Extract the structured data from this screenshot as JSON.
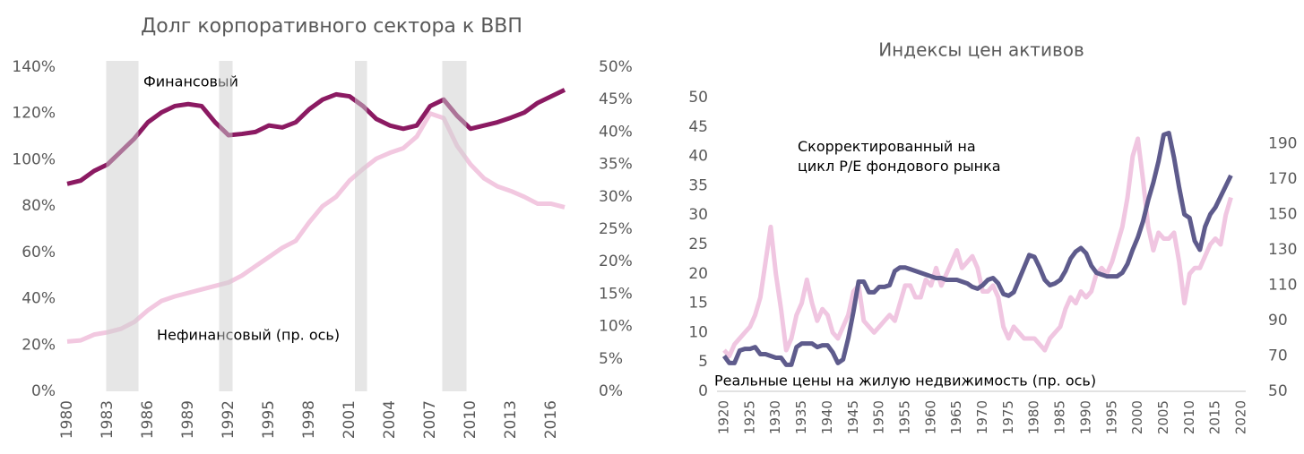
{
  "chart_data": [
    {
      "type": "line",
      "title": "Долг корпоративного сектора к ВВП",
      "x": [
        1980,
        1981,
        1982,
        1983,
        1984,
        1985,
        1986,
        1987,
        1988,
        1989,
        1990,
        1991,
        1992,
        1993,
        1994,
        1995,
        1996,
        1997,
        1998,
        1999,
        2000,
        2001,
        2002,
        2003,
        2004,
        2005,
        2006,
        2007,
        2008,
        2009,
        2010,
        2011,
        2012,
        2013,
        2014,
        2015,
        2016,
        2017
      ],
      "xlim": [
        1980,
        2018
      ],
      "xticks": [
        1980,
        1983,
        1986,
        1989,
        1992,
        1995,
        1998,
        2001,
        2004,
        2007,
        2010,
        2013,
        2016
      ],
      "ylim": [
        0,
        140
      ],
      "yticks": [
        {
          "value": 0,
          "label": "0%"
        },
        {
          "value": 20,
          "label": "20%"
        },
        {
          "value": 40,
          "label": "40%"
        },
        {
          "value": 60,
          "label": "60%"
        },
        {
          "value": 80,
          "label": "80%"
        },
        {
          "value": 100,
          "label": "100%"
        },
        {
          "value": 120,
          "label": "120%"
        },
        {
          "value": 140,
          "label": "140%"
        }
      ],
      "y2lim": [
        0,
        50
      ],
      "y2ticks": [
        {
          "value": 0,
          "label": "0%"
        },
        {
          "value": 5,
          "label": "5%"
        },
        {
          "value": 10,
          "label": "10%"
        },
        {
          "value": 15,
          "label": "15%"
        },
        {
          "value": 20,
          "label": "20%"
        },
        {
          "value": 25,
          "label": "25%"
        },
        {
          "value": 30,
          "label": "30%"
        },
        {
          "value": 35,
          "label": "35%"
        },
        {
          "value": 40,
          "label": "40%"
        },
        {
          "value": 45,
          "label": "45%"
        },
        {
          "value": 50,
          "label": "50%"
        }
      ],
      "shaded_periods": [
        [
          1982.9,
          1985.3
        ],
        [
          1991.3,
          1992.3
        ],
        [
          2001.4,
          2002.3
        ],
        [
          2007.9,
          2009.7
        ]
      ],
      "series": [
        {
          "name": "Финансовый",
          "color": "#f2c8e0",
          "values": [
            21.5,
            22,
            24.5,
            25.5,
            27,
            30,
            35,
            39,
            41,
            42.5,
            44,
            45.5,
            47,
            50,
            54,
            58,
            62,
            65,
            73,
            80,
            84,
            91,
            96,
            100.5,
            103,
            105,
            110,
            120,
            118,
            106,
            98,
            92,
            88.5,
            86.5,
            84,
            81,
            81,
            79.5
          ]
        },
        {
          "name": "Нефинансовый (пр. ось)",
          "color": "#8b1a62",
          "axis": "y2",
          "values": [
            32,
            32.5,
            34,
            35,
            37,
            39,
            41.5,
            43,
            44,
            44.3,
            44,
            41.5,
            39.5,
            39.7,
            40,
            41,
            40.7,
            41.5,
            43.5,
            45,
            45.8,
            45.5,
            44,
            42,
            41,
            40.5,
            41,
            44,
            45,
            42.5,
            40.5,
            41,
            41.5,
            42.2,
            43,
            44.5,
            45.5,
            46.5
          ]
        }
      ]
    },
    {
      "type": "line",
      "title": "Индексы цен активов",
      "x": [
        1920,
        1921,
        1922,
        1923,
        1924,
        1925,
        1926,
        1927,
        1928,
        1929,
        1930,
        1931,
        1932,
        1933,
        1934,
        1935,
        1936,
        1937,
        1938,
        1939,
        1940,
        1941,
        1942,
        1943,
        1944,
        1945,
        1946,
        1947,
        1948,
        1949,
        1950,
        1951,
        1952,
        1953,
        1954,
        1955,
        1956,
        1957,
        1958,
        1959,
        1960,
        1961,
        1962,
        1963,
        1964,
        1965,
        1966,
        1967,
        1968,
        1969,
        1970,
        1971,
        1972,
        1973,
        1974,
        1975,
        1976,
        1977,
        1978,
        1979,
        1980,
        1981,
        1982,
        1983,
        1984,
        1985,
        1986,
        1987,
        1988,
        1989,
        1990,
        1991,
        1992,
        1993,
        1994,
        1995,
        1996,
        1997,
        1998,
        1999,
        2000,
        2001,
        2002,
        2003,
        2004,
        2005,
        2006,
        2007,
        2008,
        2009,
        2010,
        2011,
        2012,
        2013,
        2014,
        2015,
        2016,
        2017,
        2018
      ],
      "xlim": [
        1920,
        2020
      ],
      "xticks": [
        1920,
        1925,
        1930,
        1935,
        1940,
        1945,
        1950,
        1955,
        1960,
        1965,
        1970,
        1975,
        1980,
        1985,
        1990,
        1995,
        2000,
        2005,
        2010,
        2015,
        2020
      ],
      "ylim": [
        0,
        50
      ],
      "yticks": [
        0,
        5,
        10,
        15,
        20,
        25,
        30,
        35,
        40,
        45,
        50
      ],
      "y2lim": [
        50,
        216
      ],
      "y2ticks": [
        50,
        70,
        90,
        110,
        130,
        150,
        170,
        190
      ],
      "series": [
        {
          "name": "Скорректированный на цикл P/E фондового рынка",
          "color": "#f0c6e1",
          "values": [
            7,
            6,
            8,
            9,
            10,
            11,
            13,
            16,
            22,
            28,
            20,
            14,
            7,
            9,
            13,
            15,
            19,
            15,
            12,
            14,
            13,
            10,
            9,
            11,
            13,
            17,
            18,
            12,
            11,
            10,
            11,
            12,
            13,
            12,
            15,
            18,
            18,
            16,
            16,
            19,
            18,
            21,
            18,
            20,
            22,
            24,
            21,
            22,
            23,
            21,
            17,
            17,
            18,
            16,
            11,
            9,
            11,
            10,
            9,
            9,
            9,
            8,
            7,
            9,
            10,
            11,
            14,
            16,
            15,
            17,
            16,
            17,
            20,
            21,
            20,
            22,
            25,
            28,
            33,
            40,
            43,
            36,
            28,
            24,
            27,
            26,
            26,
            27,
            22,
            15,
            20,
            21,
            21,
            23,
            25,
            26,
            25,
            30,
            33
          ]
        },
        {
          "name": "Реальные цены на жилую недвижимость (пр. ось)",
          "color": "#5e5b8c",
          "axis": "y2",
          "values": [
            70,
            66,
            66,
            73,
            74,
            74,
            75,
            71,
            71,
            70,
            69,
            69,
            65,
            65,
            75,
            77,
            77,
            77,
            75,
            76,
            76,
            72,
            66,
            68,
            80,
            95,
            112,
            112,
            106,
            106,
            109,
            109,
            110,
            118,
            120,
            120,
            119,
            118,
            117,
            116,
            115,
            114,
            114,
            113,
            113,
            113,
            112,
            111,
            109,
            108,
            110,
            113,
            114,
            111,
            105,
            104,
            106,
            113,
            120,
            127,
            126,
            120,
            113,
            110,
            111,
            113,
            118,
            125,
            129,
            131,
            128,
            121,
            117,
            116,
            115,
            115,
            115,
            117,
            122,
            130,
            137,
            146,
            158,
            168,
            180,
            195,
            196,
            182,
            165,
            150,
            148,
            135,
            130,
            143,
            150,
            154,
            160,
            166,
            172
          ]
        }
      ]
    }
  ]
}
